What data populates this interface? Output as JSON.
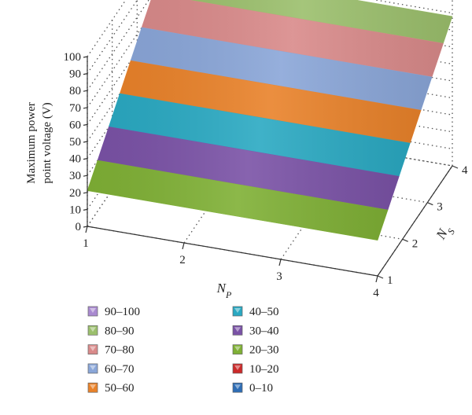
{
  "chart_data": {
    "type": "surface",
    "title": "",
    "x_axis": {
      "label": "N",
      "label_sub": "P",
      "ticks": [
        "1",
        "2",
        "3",
        "4"
      ]
    },
    "y_axis": {
      "label": "N",
      "label_sub": "S",
      "ticks": [
        "1",
        "2",
        "3",
        "4"
      ]
    },
    "z_axis": {
      "label_line1": "Maximum power",
      "label_line2": "point voltage (V)",
      "ticks": [
        "0",
        "10",
        "20",
        "30",
        "40",
        "50",
        "60",
        "70",
        "80",
        "90",
        "100"
      ],
      "range": [
        0,
        100
      ]
    },
    "grid": true,
    "legend_position": "bottom-left",
    "legend": [
      {
        "label": "90–100",
        "color": "#a98ad0"
      },
      {
        "label": "80–90",
        "color": "#9bbf6c"
      },
      {
        "label": "70–80",
        "color": "#d98a8a"
      },
      {
        "label": "60–70",
        "color": "#8aa6d8"
      },
      {
        "label": "50–60",
        "color": "#e9822a"
      },
      {
        "label": "40–50",
        "color": "#2aa9c2"
      },
      {
        "label": "30–40",
        "color": "#7a52a6"
      },
      {
        "label": "20–30",
        "color": "#7fb035"
      },
      {
        "label": "10–20",
        "color": "#cc2a2a"
      },
      {
        "label": "0–10",
        "color": "#2e6db5"
      }
    ],
    "surface": {
      "x": [
        1,
        2,
        3,
        4
      ],
      "y": [
        1,
        2,
        3,
        4
      ],
      "z_by_y": [
        21,
        43,
        66,
        88
      ],
      "z_note_units": "V"
    }
  }
}
